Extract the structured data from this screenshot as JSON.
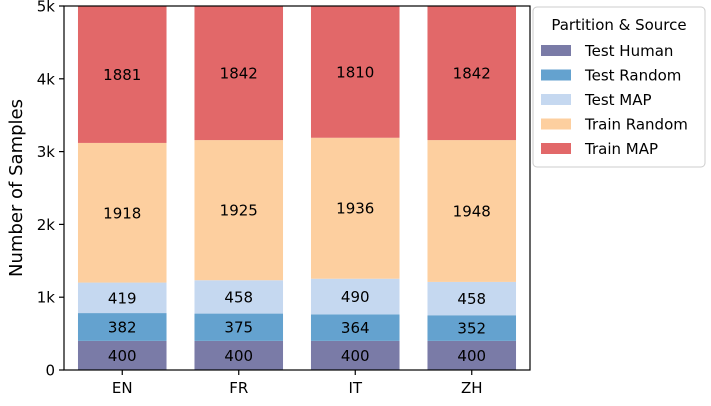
{
  "chart_data": {
    "type": "bar",
    "stacked": true,
    "title": "",
    "xlabel": "",
    "ylabel": "Number of Samples",
    "ylim": [
      0,
      5000
    ],
    "yticks": [
      0,
      1000,
      2000,
      3000,
      4000,
      5000
    ],
    "ytick_labels": [
      "0",
      "1k",
      "2k",
      "3k",
      "4k",
      "5k"
    ],
    "grid": false,
    "categories": [
      "EN",
      "FR",
      "IT",
      "ZH"
    ],
    "legend": {
      "title": "Partition & Source",
      "placement": "upper-right-outside"
    },
    "series": [
      {
        "name": "Test Human",
        "color": "#7a7ba7",
        "values": [
          400,
          400,
          400,
          400
        ]
      },
      {
        "name": "Test Random",
        "color": "#64a2cf",
        "values": [
          382,
          375,
          364,
          352
        ]
      },
      {
        "name": "Test MAP",
        "color": "#c5d8f0",
        "values": [
          419,
          458,
          490,
          458
        ]
      },
      {
        "name": "Train Random",
        "color": "#fdcf9f",
        "values": [
          1918,
          1925,
          1936,
          1948
        ]
      },
      {
        "name": "Train MAP",
        "color": "#e26869",
        "values": [
          1881,
          1842,
          1810,
          1842
        ]
      }
    ]
  }
}
